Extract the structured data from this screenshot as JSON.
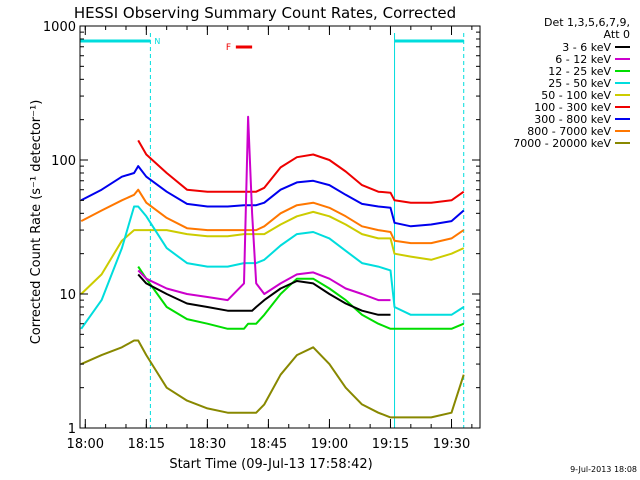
{
  "chart_data": {
    "type": "line",
    "title": "HESSI Observing Summary Count Rates, Corrected",
    "xlabel": "Start Time (09-Jul-13 17:58:42)",
    "ylabel": "Corrected Count Rate (s⁻¹ detector⁻¹)",
    "yscale": "log",
    "ylim": [
      1,
      1000
    ],
    "xlim": [
      "17:58:42",
      "19:37:00"
    ],
    "x_ticks": [
      "18:00",
      "18:15",
      "18:30",
      "18:45",
      "19:00",
      "19:15",
      "19:30"
    ],
    "y_ticks": [
      1,
      10,
      100,
      1000
    ],
    "footer": "9-Jul-2013 18:08",
    "legend_header": [
      "Det 1,3,5,6,7,9,",
      "Att 0"
    ],
    "legend_position": "right",
    "flag_labels": [
      "N",
      "F"
    ],
    "night_intervals": [
      [
        "17:58:42",
        "18:16:00"
      ],
      [
        "19:16:00",
        "19:33:00"
      ]
    ],
    "flare_interval": [
      "18:37:00",
      "18:41:00"
    ],
    "x": [
      "17:59",
      "18:04",
      "18:09",
      "18:12",
      "18:13",
      "18:15",
      "18:20",
      "18:25",
      "18:30",
      "18:35",
      "18:39",
      "18:40",
      "18:41",
      "18:42",
      "18:44",
      "18:48",
      "18:52",
      "18:56",
      "19:00",
      "19:04",
      "19:08",
      "19:12",
      "19:15",
      "19:16",
      "19:20",
      "19:25",
      "19:30",
      "19:33"
    ],
    "series": [
      {
        "name": "3 - 6 keV",
        "color": "#000000",
        "values": [
          null,
          null,
          null,
          null,
          14,
          12,
          10,
          8.5,
          8,
          7.5,
          7.5,
          7.5,
          7.5,
          8,
          9,
          11,
          12.5,
          12,
          10,
          8.5,
          7.5,
          7,
          7,
          null,
          null,
          null,
          null,
          null
        ]
      },
      {
        "name": "6 - 12 keV",
        "color": "#cc00cc",
        "values": [
          null,
          null,
          null,
          null,
          15,
          13,
          11,
          10,
          9.5,
          9,
          12,
          210,
          40,
          12,
          10,
          12,
          14,
          14.5,
          13,
          11,
          10,
          9,
          9,
          null,
          null,
          null,
          null,
          null
        ]
      },
      {
        "name": "12 - 25 keV",
        "color": "#00dd00",
        "values": [
          null,
          null,
          null,
          null,
          16,
          13,
          8,
          6.5,
          6,
          5.5,
          5.5,
          6,
          6,
          6,
          7,
          10,
          13,
          13,
          11,
          9,
          7,
          6,
          5.5,
          5.5,
          5.5,
          5.5,
          5.5,
          6
        ]
      },
      {
        "name": "25 - 50 keV",
        "color": "#00dddd",
        "values": [
          5.5,
          9,
          22,
          45,
          45,
          38,
          22,
          17,
          16,
          16,
          17,
          17,
          17,
          17,
          18,
          23,
          28,
          29,
          26,
          21,
          17,
          16,
          15,
          8,
          7,
          7,
          7,
          8
        ]
      },
      {
        "name": "50 - 100 keV",
        "color": "#cccc00",
        "values": [
          10,
          14,
          25,
          30,
          30,
          30,
          30,
          28,
          27,
          27,
          28,
          28,
          28,
          28,
          28,
          33,
          38,
          41,
          38,
          33,
          28,
          26,
          26,
          20,
          19,
          18,
          20,
          22
        ]
      },
      {
        "name": "100 - 300 keV",
        "color": "#ee0000",
        "values": [
          null,
          null,
          null,
          null,
          140,
          110,
          80,
          60,
          58,
          58,
          58,
          58,
          58,
          58,
          62,
          88,
          105,
          110,
          100,
          82,
          65,
          58,
          57,
          50,
          48,
          48,
          50,
          58
        ]
      },
      {
        "name": "300 - 800 keV",
        "color": "#0000ee",
        "values": [
          50,
          60,
          75,
          80,
          90,
          75,
          58,
          47,
          45,
          45,
          46,
          46,
          46,
          46,
          48,
          60,
          68,
          70,
          65,
          55,
          47,
          45,
          44,
          34,
          32,
          33,
          35,
          42
        ]
      },
      {
        "name": "800 - 7000 keV",
        "color": "#ff7700",
        "values": [
          35,
          42,
          50,
          55,
          60,
          48,
          37,
          31,
          30,
          30,
          30,
          30,
          30,
          30,
          32,
          40,
          46,
          48,
          44,
          38,
          32,
          30,
          29,
          25,
          24,
          24,
          26,
          30
        ]
      },
      {
        "name": "7000 - 20000 keV",
        "color": "#888800",
        "values": [
          3,
          3.5,
          4,
          4.5,
          4.5,
          3.5,
          2,
          1.6,
          1.4,
          1.3,
          1.3,
          1.3,
          1.3,
          1.3,
          1.5,
          2.5,
          3.5,
          4,
          3,
          2,
          1.5,
          1.3,
          1.2,
          1.2,
          1.2,
          1.2,
          1.3,
          2.5
        ]
      }
    ]
  }
}
